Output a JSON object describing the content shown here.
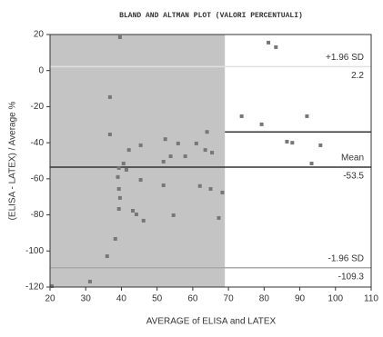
{
  "chart_data": {
    "type": "scatter",
    "title": "BLAND AND ALTMAN PLOT (VALORI PERCENTUALI)",
    "x_label": "AVERAGE of ELISA and LATEX",
    "y_label": "(ELISA - LATEX) / Average %",
    "xlim": [
      20,
      110
    ],
    "xticks": [
      20,
      30,
      40,
      50,
      60,
      70,
      80,
      90,
      100,
      110
    ],
    "ylim": [
      -120,
      20
    ],
    "yticks": [
      -120,
      -100,
      -80,
      -60,
      -40,
      -20,
      0,
      20
    ],
    "shade_x": [
      20,
      69
    ],
    "shade_color": "#c4c4c4",
    "color": "#777777",
    "x": [
      39.6,
      81.2,
      83.3,
      36.8,
      36.8,
      40.6,
      39.3,
      41.4,
      42.1,
      45.4,
      52.3,
      55.9,
      64.0,
      65.4,
      61.0,
      53.8,
      57.9,
      63.5,
      51.8,
      51.8,
      45.4,
      39.0,
      39.3,
      39.6,
      39.3,
      43.2,
      44.2,
      46.2,
      54.6,
      62.0,
      65.0,
      68.3,
      67.3,
      38.3,
      36.0,
      31.2,
      20.5,
      73.7,
      79.3,
      92.0,
      86.4,
      87.9,
      95.8,
      93.3
    ],
    "values": [
      18.5,
      15.5,
      13.0,
      -14.7,
      -35.4,
      -51.5,
      -54.0,
      -55.0,
      -44.0,
      -41.4,
      -38.0,
      -40.4,
      -34.0,
      -45.5,
      -40.4,
      -47.5,
      -47.5,
      -44.0,
      -50.5,
      -63.6,
      -60.6,
      -59.0,
      -65.6,
      -70.6,
      -76.7,
      -77.7,
      -79.7,
      -83.2,
      -80.2,
      -64.0,
      -65.6,
      -67.6,
      -81.7,
      -93.3,
      -102.9,
      -117.0,
      -119.5,
      -25.3,
      -29.8,
      -25.3,
      -39.4,
      -40.0,
      -41.4,
      -51.5
    ],
    "lines": [
      {
        "name": "+1.96 SD",
        "value": 2.2,
        "color": "#e0e0e0"
      },
      {
        "name": "Mean",
        "value": -53.5,
        "color": "#333333"
      },
      {
        "name": "-1.96 SD",
        "value": -109.3,
        "color": "#aaaaaa"
      }
    ],
    "segment": {
      "value": -34,
      "x_from": 69,
      "color": "#333333"
    }
  }
}
